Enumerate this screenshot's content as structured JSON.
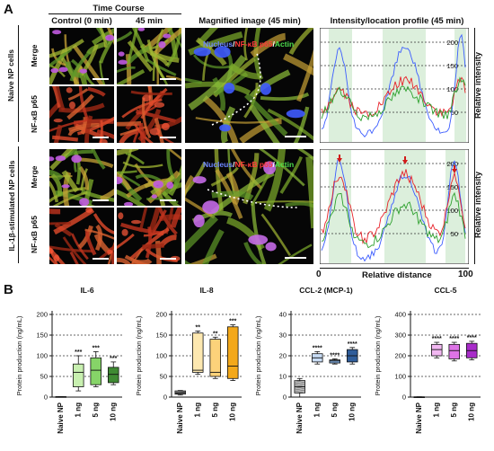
{
  "panelA": {
    "letter": "A",
    "time_course_title": "Time Course",
    "col_control": "Control (0 min)",
    "col_45": "45 min",
    "col_magnified": "Magnified image (45 min)",
    "col_profile": "Intensity/location profile (45 min)",
    "group_naive": "Naive NP cells",
    "group_il1b": "IL-1β-stimulated NP cells",
    "row_merge": "Merge",
    "row_nfkb": "NF-κB p65",
    "legend_nucleus": "Nucleus",
    "legend_sep1": "/",
    "legend_nfkb": "NF-κB p65",
    "legend_sep2": "/",
    "legend_actin": "Actin",
    "profile_ylabel": "Relative intensity",
    "profile_xlabel": "Relative distance",
    "profile_x0": "0",
    "profile_x100": "100",
    "profile_yticks": [
      "200",
      "150",
      "100",
      "50"
    ],
    "colors": {
      "nucleus": "#3b5cff",
      "nfkb": "#e8222a",
      "actin": "#2ca02c"
    }
  },
  "panelB": {
    "letter": "B",
    "ylabel": "Protein production (ng/mL)"
  },
  "chart_data": [
    {
      "type": "bar",
      "title": "IL-6",
      "ylabel": "Protein production (ng/mL)",
      "ylim": [
        0,
        200
      ],
      "yticks": [
        0,
        50,
        100,
        150,
        200
      ],
      "categories": [
        "Naive NP",
        "1 ng",
        "5 ng",
        "10 ng"
      ],
      "boxes": [
        {
          "min": 1,
          "q1": 1,
          "median": 1,
          "q3": 1,
          "max": 1,
          "sig": ""
        },
        {
          "min": 15,
          "q1": 25,
          "median": 60,
          "q3": 80,
          "max": 100,
          "sig": "***"
        },
        {
          "min": 25,
          "q1": 30,
          "median": 65,
          "q3": 95,
          "max": 110,
          "sig": "***"
        },
        {
          "min": 30,
          "q1": 35,
          "median": 55,
          "q3": 72,
          "max": 85,
          "sig": "***"
        }
      ],
      "fills": [
        "#ffffff",
        "#c8f0b0",
        "#86d468",
        "#3f8a33"
      ],
      "grid": "dashed"
    },
    {
      "type": "bar",
      "title": "IL-8",
      "ylabel": "Protein production (ng/mL)",
      "ylim": [
        0,
        200
      ],
      "yticks": [
        0,
        50,
        100,
        150,
        200
      ],
      "categories": [
        "Naive NP",
        "1 ng",
        "5 ng",
        "10 ng"
      ],
      "boxes": [
        {
          "min": 5,
          "q1": 7,
          "median": 10,
          "q3": 15,
          "max": 16,
          "sig": ""
        },
        {
          "min": 55,
          "q1": 60,
          "median": 65,
          "q3": 155,
          "max": 160,
          "sig": "**"
        },
        {
          "min": 45,
          "q1": 50,
          "median": 60,
          "q3": 140,
          "max": 145,
          "sig": "**"
        },
        {
          "min": 40,
          "q1": 45,
          "median": 75,
          "q3": 170,
          "max": 175,
          "sig": "***"
        }
      ],
      "fills": [
        "#bbbbbb",
        "#fde8b0",
        "#fcd27a",
        "#f3a81a"
      ],
      "grid": "dashed"
    },
    {
      "type": "bar",
      "title": "CCL-2 (MCP-1)",
      "ylabel": "Protein production (ng/mL)",
      "ylim": [
        0,
        40
      ],
      "yticks": [
        0,
        10,
        20,
        30,
        40
      ],
      "categories": [
        "Naive NP",
        "1 ng",
        "5 ng",
        "10 ng"
      ],
      "boxes": [
        {
          "min": 0,
          "q1": 2,
          "median": 5,
          "q3": 8,
          "max": 9,
          "sig": ""
        },
        {
          "min": 16,
          "q1": 17,
          "median": 19,
          "q3": 21,
          "max": 22,
          "sig": "****"
        },
        {
          "min": 16,
          "q1": 16.5,
          "median": 17.5,
          "q3": 18,
          "max": 18.5,
          "sig": "****"
        },
        {
          "min": 16,
          "q1": 17,
          "median": 20,
          "q3": 23,
          "max": 24,
          "sig": "****"
        }
      ],
      "fills": [
        "#bbbbbb",
        "#c8dcf5",
        "#7ea7d8",
        "#2f5d9a"
      ],
      "grid": "dashed"
    },
    {
      "type": "bar",
      "title": "CCL-5",
      "ylabel": "Protein production (ng/mL)",
      "ylim": [
        0,
        400
      ],
      "yticks": [
        0,
        100,
        200,
        300,
        400
      ],
      "categories": [
        "Naive NP",
        "1 ng",
        "5 ng",
        "10 ng"
      ],
      "boxes": [
        {
          "min": 1,
          "q1": 1,
          "median": 1,
          "q3": 1,
          "max": 1,
          "sig": ""
        },
        {
          "min": 190,
          "q1": 200,
          "median": 230,
          "q3": 255,
          "max": 265,
          "sig": "****"
        },
        {
          "min": 175,
          "q1": 185,
          "median": 225,
          "q3": 255,
          "max": 265,
          "sig": "****"
        },
        {
          "min": 180,
          "q1": 190,
          "median": 225,
          "q3": 260,
          "max": 270,
          "sig": "****"
        }
      ],
      "fills": [
        "#ffffff",
        "#f2b8f2",
        "#dd73e6",
        "#a82cc9"
      ],
      "grid": "dashed"
    }
  ]
}
